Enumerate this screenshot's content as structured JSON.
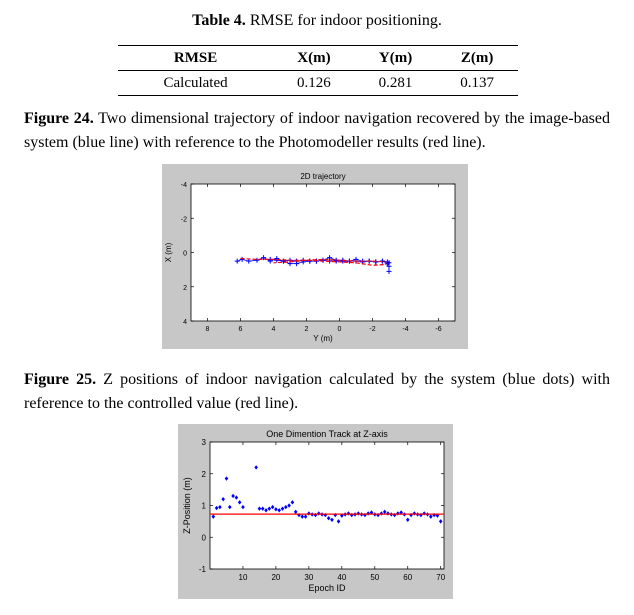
{
  "table": {
    "caption_label": "Table 4.",
    "caption_text": " RMSE for indoor positioning.",
    "headers": [
      "RMSE",
      "X(m)",
      "Y(m)",
      "Z(m)"
    ],
    "rows": [
      [
        "Calculated",
        "0.126",
        "0.281",
        "0.137"
      ]
    ]
  },
  "fig24": {
    "caption_label": "Figure 24.",
    "caption_text": " Two dimensional trajectory of indoor navigation recovered by the image-based system (blue line) with reference to the Photomodeller results (red line)."
  },
  "fig25": {
    "caption_label": "Figure 25.",
    "caption_text": " Z positions of indoor navigation calculated by the system (blue dots) with reference to the controlled value (red line)."
  },
  "colors": {
    "figure_bg": "#c7c7c7",
    "blue": "#0000ff",
    "red": "#ff0000"
  },
  "chart_data": [
    {
      "type": "line",
      "title": "2D trajectory",
      "xlabel": "Y (m)",
      "ylabel": "X (m)",
      "xlim": [
        9,
        -7
      ],
      "ylim": [
        -4,
        4
      ],
      "x_reversed": true,
      "y_reversed": true,
      "xticks": [
        8,
        6,
        4,
        2,
        0,
        -2,
        -4,
        -6
      ],
      "yticks": [
        -4,
        -2,
        0,
        2,
        4
      ],
      "grid": false,
      "series": [
        {
          "color": "#0000ff",
          "marker": "+",
          "x": [
            6.2,
            5.9,
            5.5,
            5.0,
            4.6,
            4.2,
            3.8,
            3.4,
            3.0,
            2.6,
            2.2,
            1.8,
            1.4,
            1.0,
            0.6,
            0.2,
            -0.2,
            -0.6,
            -1.0,
            -1.4,
            -1.8,
            -2.2,
            -2.6,
            -2.9,
            -3.0,
            -3.0,
            -3.0,
            -2.9,
            -2.6,
            -2.2,
            -1.8,
            -1.4,
            -1.0,
            -0.6,
            -0.2,
            0.2,
            0.6,
            1.0,
            1.4,
            1.8,
            2.2,
            2.6,
            3.0,
            3.4,
            3.8,
            4.2
          ],
          "y": [
            0.5,
            0.4,
            0.5,
            0.45,
            0.3,
            0.5,
            0.35,
            0.5,
            0.45,
            0.5,
            0.45,
            0.5,
            0.5,
            0.45,
            0.3,
            0.45,
            0.5,
            0.5,
            0.4,
            0.5,
            0.5,
            0.55,
            0.5,
            0.55,
            0.8,
            1.1,
            0.6,
            0.65,
            0.5,
            0.55,
            0.5,
            0.55,
            0.5,
            0.5,
            0.45,
            0.5,
            0.5,
            0.45,
            0.5,
            0.5,
            0.55,
            0.65,
            0.65,
            0.5,
            0.45,
            0.4
          ]
        },
        {
          "color": "#ff0000",
          "style": "dashed",
          "x": [
            6.0,
            5.0,
            4.0,
            3.0,
            2.0,
            1.0,
            0.0,
            -1.0,
            -2.0,
            -2.8,
            -2.8,
            -2.0,
            -1.0,
            0.0,
            1.0,
            2.0,
            3.0,
            4.0
          ],
          "y": [
            0.35,
            0.4,
            0.4,
            0.45,
            0.45,
            0.4,
            0.45,
            0.5,
            0.5,
            0.55,
            0.7,
            0.75,
            0.6,
            0.55,
            0.5,
            0.45,
            0.55,
            0.6
          ]
        }
      ]
    },
    {
      "type": "scatter",
      "title": "One Dimention Track at Z-axis",
      "xlabel": "Epoch ID",
      "ylabel": "Z-Position (m)",
      "xlim": [
        0,
        71
      ],
      "ylim": [
        -1,
        3
      ],
      "xticks": [
        10,
        20,
        30,
        40,
        50,
        60,
        70
      ],
      "yticks": [
        -1,
        0,
        1,
        2,
        3
      ],
      "grid": false,
      "series": [
        {
          "color": "#0000ff",
          "marker": "diamond",
          "x": [
            1,
            2,
            3,
            4,
            5,
            6,
            7,
            8,
            9,
            10,
            14,
            15,
            16,
            17,
            18,
            19,
            20,
            21,
            22,
            23,
            24,
            25,
            26,
            27,
            28,
            29,
            30,
            31,
            32,
            33,
            34,
            35,
            36,
            37,
            38,
            39,
            40,
            41,
            42,
            43,
            44,
            45,
            46,
            47,
            48,
            49,
            50,
            51,
            52,
            53,
            54,
            55,
            56,
            57,
            58,
            59,
            60,
            61,
            62,
            63,
            64,
            65,
            66,
            67,
            68,
            69,
            70
          ],
          "y": [
            0.65,
            0.92,
            0.95,
            1.2,
            1.85,
            0.95,
            1.3,
            1.25,
            1.1,
            0.95,
            2.2,
            0.9,
            0.9,
            0.85,
            0.9,
            0.95,
            0.88,
            0.85,
            0.9,
            0.95,
            1.0,
            1.1,
            0.8,
            0.7,
            0.65,
            0.65,
            0.75,
            0.72,
            0.7,
            0.75,
            0.72,
            0.7,
            0.6,
            0.55,
            0.7,
            0.5,
            0.68,
            0.72,
            0.75,
            0.7,
            0.72,
            0.75,
            0.72,
            0.7,
            0.75,
            0.78,
            0.72,
            0.7,
            0.75,
            0.8,
            0.75,
            0.72,
            0.7,
            0.75,
            0.78,
            0.72,
            0.55,
            0.7,
            0.75,
            0.72,
            0.7,
            0.75,
            0.72,
            0.65,
            0.7,
            0.68,
            0.5
          ]
        },
        {
          "color": "#ff0000",
          "style": "solid",
          "x": [
            0,
            71
          ],
          "y": [
            0.73,
            0.73
          ]
        }
      ]
    }
  ]
}
